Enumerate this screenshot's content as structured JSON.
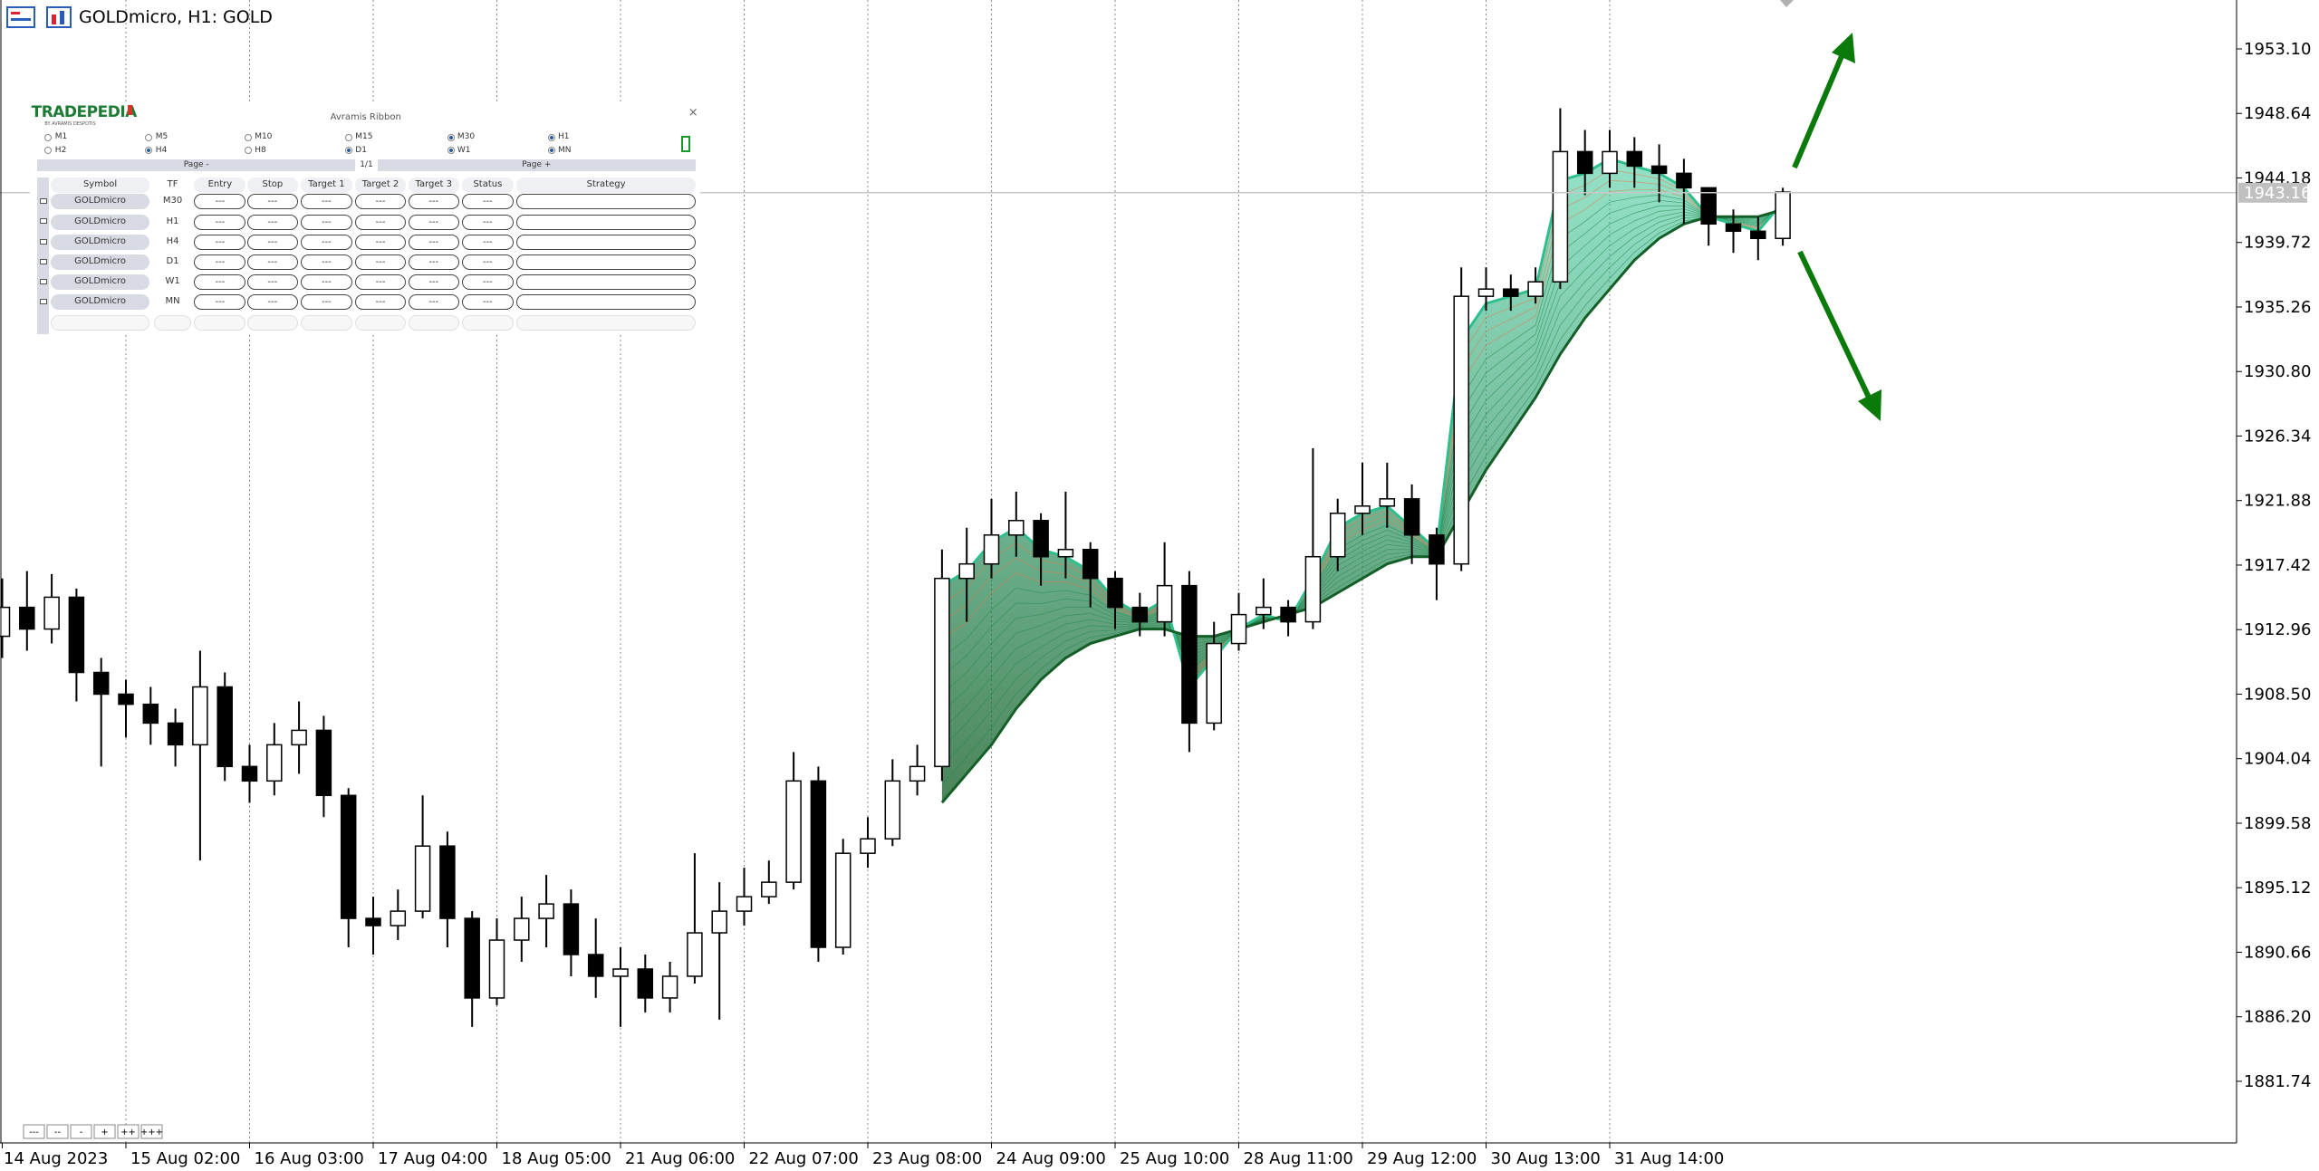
{
  "chart_data": {
    "type": "candlestick",
    "title": "GOLDmicro, H1:  GOLD",
    "categories": [
      "14 Aug 2023",
      null,
      null,
      null,
      null,
      "15 Aug 02:00",
      null,
      null,
      null,
      null,
      "16 Aug 03:00",
      null,
      null,
      null,
      null,
      "17 Aug 04:00",
      null,
      null,
      null,
      null,
      "18 Aug 05:00",
      null,
      null,
      null,
      null,
      "21 Aug 06:00",
      null,
      null,
      null,
      null,
      "22 Aug 07:00",
      null,
      null,
      null,
      null,
      "23 Aug 08:00",
      null,
      null,
      null,
      null,
      "24 Aug 09:00",
      null,
      null,
      null,
      null,
      "25 Aug 10:00",
      null,
      null,
      null,
      null,
      "28 Aug 11:00",
      null,
      null,
      null,
      null,
      "29 Aug 12:00",
      null,
      null,
      null,
      null,
      "30 Aug 13:00",
      null,
      null,
      null,
      null,
      "31 Aug 14:00",
      null,
      null,
      null,
      null,
      null,
      null,
      null
    ],
    "open": [
      1912.5,
      1914.5,
      1913,
      1915.2,
      1910,
      1908.5,
      1907.8,
      1906.5,
      1905,
      1909,
      1903.5,
      1902.5,
      1905,
      1906,
      1901.5,
      1893,
      1892.5,
      1893.5,
      1898,
      1893,
      1887.5,
      1891.5,
      1893,
      1894,
      1890.5,
      1889,
      1889.5,
      1887.5,
      1889,
      1892,
      1893.5,
      1894.5,
      1895.5,
      1902.5,
      1891,
      1897.5,
      1898.5,
      1902.5,
      1903.5,
      1916.5,
      1917.5,
      1919.5,
      1920.5,
      1918,
      1918.5,
      1916.5,
      1914.5,
      1913.5,
      1916,
      1906.5,
      1912,
      1914,
      1914.5,
      1913.5,
      1918,
      1921,
      1921.5,
      1922,
      1919.5,
      1917.5,
      1936,
      1936.5,
      1936,
      1937,
      1946,
      1944.5,
      1946,
      1945,
      1944.5,
      1943.5,
      1941,
      1940.5,
      1940
    ],
    "high": [
      1916.5,
      1917,
      1916.8,
      1915.8,
      1911,
      1909.5,
      1909,
      1907.5,
      1911.5,
      1910,
      1905,
      1906.5,
      1908,
      1907,
      1902,
      1894.5,
      1895,
      1901.5,
      1899,
      1893.5,
      1893,
      1894.5,
      1896,
      1895,
      1893,
      1891,
      1890.5,
      1890,
      1897.5,
      1895.5,
      1896.5,
      1897,
      1904.5,
      1903.5,
      1898.5,
      1900,
      1904,
      1905,
      1918.5,
      1920,
      1922,
      1922.5,
      1921,
      1922.5,
      1919,
      1917,
      1915.5,
      1919,
      1917,
      1913.5,
      1915.5,
      1916.5,
      1915,
      1925.5,
      1922,
      1924.5,
      1924.5,
      1923,
      1920,
      1938,
      1938,
      1937.5,
      1938,
      1949,
      1947.5,
      1947.5,
      1947,
      1946.5,
      1945.5,
      1943.5,
      1942,
      1941.5,
      1943.5
    ],
    "low": [
      1911,
      1911.5,
      1912,
      1908,
      1903.5,
      1905.5,
      1905,
      1903.5,
      1897,
      1902.5,
      1901,
      1901.5,
      1903,
      1900,
      1891,
      1890.5,
      1891.5,
      1893,
      1891,
      1885.5,
      1887,
      1890,
      1891,
      1889,
      1887.5,
      1885.5,
      1886.5,
      1886.5,
      1888.5,
      1886,
      1892.5,
      1894,
      1895,
      1890,
      1890.5,
      1896.5,
      1898,
      1901.5,
      1902.5,
      1913.5,
      1916.5,
      1918,
      1916,
      1916.5,
      1914.5,
      1913,
      1912.5,
      1912.5,
      1904.5,
      1906,
      1911.5,
      1913,
      1912.5,
      1913,
      1917,
      1919.5,
      1920,
      1917.5,
      1915,
      1917,
      1935,
      1935,
      1935.5,
      1936.5,
      1943,
      1943.5,
      1943.5,
      1942.5,
      1941,
      1939.5,
      1939,
      1938.5,
      1939.5
    ],
    "close": [
      1914.5,
      1913,
      1915.2,
      1910,
      1908.5,
      1907.8,
      1906.5,
      1905,
      1909,
      1903.5,
      1902.5,
      1905,
      1906,
      1901.5,
      1893,
      1892.5,
      1893.5,
      1898,
      1893,
      1887.5,
      1891.5,
      1893,
      1894,
      1890.5,
      1889,
      1889.5,
      1887.5,
      1889,
      1892,
      1893.5,
      1894.5,
      1895.5,
      1902.5,
      1891,
      1897.5,
      1898.5,
      1902.5,
      1903.5,
      1916.5,
      1917.5,
      1919.5,
      1920.5,
      1918,
      1918.5,
      1916.5,
      1914.5,
      1913.5,
      1916,
      1906.5,
      1912,
      1914,
      1914.5,
      1913.5,
      1918,
      1921,
      1921.5,
      1922,
      1919.5,
      1917.5,
      1936,
      1936.5,
      1936,
      1937,
      1946,
      1944.5,
      1946,
      1945,
      1944.5,
      1943.5,
      1941,
      1940.5,
      1940,
      1943.2
    ],
    "up_color": "#ffffff",
    "down_color": "#000000",
    "ribbon": [
      {
        "color": "#2fbf8f",
        "values": [
          null,
          null,
          null,
          null,
          null,
          null,
          null,
          null,
          null,
          null,
          null,
          null,
          null,
          null,
          null,
          null,
          null,
          null,
          null,
          null,
          null,
          null,
          null,
          null,
          null,
          null,
          null,
          null,
          null,
          null,
          null,
          null,
          null,
          null,
          null,
          null,
          null,
          null,
          1916,
          1917,
          1919,
          1920,
          1918.5,
          1918,
          1917,
          1915,
          1914,
          1915,
          1909,
          1911,
          1913,
          1914,
          1913.5,
          1916.5,
          1920,
          1921,
          1921.5,
          1920,
          1918.5,
          1933,
          1935.5,
          1936,
          1936.5,
          1944,
          1944.5,
          1945.5,
          1945,
          1944.5,
          1943.5,
          1941.5,
          1941,
          1940.5,
          1942.5
        ]
      },
      {
        "color": "#145f28",
        "values": [
          null,
          null,
          null,
          null,
          null,
          null,
          null,
          null,
          null,
          null,
          null,
          null,
          null,
          null,
          null,
          null,
          null,
          null,
          null,
          null,
          null,
          null,
          null,
          null,
          null,
          null,
          null,
          null,
          null,
          null,
          null,
          null,
          null,
          null,
          null,
          null,
          null,
          null,
          1901,
          1903,
          1905,
          1907.5,
          1909.5,
          1911,
          1912,
          1912.5,
          1913,
          1913,
          1912.5,
          1912.5,
          1913,
          1913.5,
          1914,
          1914.5,
          1915.5,
          1916.5,
          1917.5,
          1918,
          1918,
          1921,
          1924,
          1926.5,
          1929,
          1932,
          1934.5,
          1936.5,
          1938.5,
          1940,
          1941,
          1941.5,
          1941.5,
          1941.5,
          1942
        ]
      }
    ],
    "ylim": [
      1877.48,
      1956.48
    ],
    "yticks": [
      {
        "value": 1953.1,
        "label": "1953.10"
      },
      1948.64,
      1944.18,
      1939.72,
      1935.26,
      {
        "value": 1930.8,
        "label": "1930.80"
      },
      1926.34,
      1921.88,
      1917.42,
      1912.96,
      {
        "value": 1908.5,
        "label": "1908.50"
      },
      1904.04,
      1899.58,
      1895.12,
      1890.66,
      {
        "value": 1886.2,
        "label": "1886.20"
      },
      1881.74
    ],
    "current_price": 1943.16,
    "grid": true
  },
  "zoom_buttons": [
    "---",
    "--",
    "-",
    "+",
    "++",
    "+++"
  ],
  "panel": {
    "brand": "TRADEPEDIA",
    "brand_sub": "BY AVRAMIS DESPOTIS",
    "title": "Avramis Ribbon",
    "close": "×",
    "timeframes": [
      {
        "label": "M1",
        "checked": false
      },
      {
        "label": "M5",
        "checked": false
      },
      {
        "label": "M10",
        "checked": false
      },
      {
        "label": "M15",
        "checked": false
      },
      {
        "label": "M30",
        "checked": true
      },
      {
        "label": "H1",
        "checked": true
      },
      {
        "label": "H2",
        "checked": false
      },
      {
        "label": "H4",
        "checked": true
      },
      {
        "label": "H8",
        "checked": false
      },
      {
        "label": "D1",
        "checked": true
      },
      {
        "label": "W1",
        "checked": true
      },
      {
        "label": "MN",
        "checked": true
      }
    ],
    "page_prev": "Page -",
    "page": "1/1",
    "page_next": "Page +",
    "columns": [
      "Symbol",
      "TF",
      "Entry",
      "Stop",
      "Target 1",
      "Target 2",
      "Target 3",
      "Status",
      "Strategy"
    ],
    "rows": [
      [
        "GOLDmicro",
        "M30",
        "---",
        "---",
        "---",
        "---",
        "---",
        "---"
      ],
      [
        "GOLDmicro",
        "H1",
        "---",
        "---",
        "---",
        "---",
        "---",
        "---"
      ],
      [
        "GOLDmicro",
        "H4",
        "---",
        "---",
        "---",
        "---",
        "---",
        "---"
      ],
      [
        "GOLDmicro",
        "D1",
        "---",
        "---",
        "---",
        "---",
        "---",
        "---"
      ],
      [
        "GOLDmicro",
        "W1",
        "---",
        "---",
        "---",
        "---",
        "---",
        "---"
      ],
      [
        "GOLDmicro",
        "MN",
        "---",
        "---",
        "---",
        "---",
        "---",
        "---"
      ]
    ]
  }
}
